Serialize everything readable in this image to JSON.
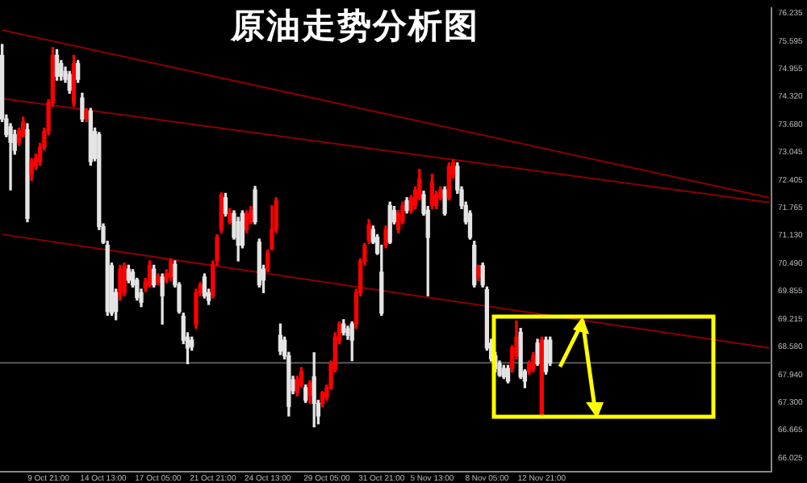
{
  "chart_data": {
    "type": "candlestick",
    "title": "原油走势分析图",
    "categories": [
      null,
      null,
      null,
      null,
      null,
      null,
      null,
      null,
      null,
      null,
      null,
      "9 Oct 21:00",
      null,
      null,
      null,
      null,
      null,
      null,
      null,
      null,
      null,
      null,
      null,
      null,
      "14 Oct 13:00",
      null,
      null,
      null,
      null,
      null,
      null,
      null,
      null,
      null,
      null,
      null,
      null,
      "17 Oct 05:00",
      null,
      null,
      null,
      null,
      null,
      null,
      null,
      null,
      null,
      null,
      null,
      null,
      "21 Oct 21:00",
      null,
      null,
      null,
      null,
      null,
      null,
      null,
      null,
      null,
      null,
      null,
      null,
      "24 Oct 13:00",
      null,
      null,
      null,
      null,
      null,
      null,
      null,
      null,
      null,
      null,
      null,
      null,
      null,
      "29 Oct 05:00",
      null,
      null,
      null,
      null,
      null,
      null,
      null,
      null,
      null,
      null,
      null,
      null,
      "31 Oct 21:00",
      null,
      null,
      null,
      null,
      null,
      null,
      null,
      null,
      null,
      null,
      null,
      "5 Nov 13:00",
      null,
      null,
      null,
      null,
      null,
      null,
      null,
      null,
      null,
      null,
      null,
      null,
      "8 Nov 05:00",
      null,
      null,
      null,
      null,
      null,
      null,
      null,
      null,
      null,
      null,
      null,
      null,
      "12 Nov 21:00",
      null,
      null,
      null,
      null,
      null,
      null,
      null,
      null,
      null,
      null,
      null,
      null,
      null,
      null,
      null,
      null,
      null,
      null,
      null,
      null,
      null,
      null,
      null,
      null,
      null,
      null,
      null,
      null,
      null,
      null,
      null,
      null,
      null,
      null,
      null,
      null,
      null,
      null,
      null,
      null,
      null,
      null,
      null,
      null,
      null,
      null,
      null,
      null,
      null,
      null,
      null,
      null,
      null,
      null
    ],
    "ylim": [
      65.71,
      76.355
    ],
    "yticks": [
      76.235,
      75.595,
      74.955,
      {
        "value": 74.32,
        "label": "74.320"
      },
      {
        "value": 73.68,
        "label": "73.680"
      },
      73.045,
      72.405,
      71.765,
      {
        "value": 71.13,
        "label": "71.130"
      },
      {
        "value": 70.49,
        "label": "70.490"
      },
      69.855,
      69.215,
      {
        "value": 68.58,
        "label": "68.580"
      },
      {
        "value": 67.94,
        "label": "67.940"
      },
      {
        "value": 67.3,
        "label": "67.300"
      },
      66.665,
      66.025
    ],
    "grid": false,
    "legend": false,
    "marker": "none",
    "ref_lines": [
      {
        "axis": "y",
        "value": 68.21,
        "color": "#5a5a5a"
      }
    ],
    "series": [
      {
        "colors": [
          "#e4e4e4",
          "#e4e4e4",
          "#e4e4e4",
          "#e4e4e4",
          "#ff0000",
          "#ff0000",
          "#e4e4e4",
          "#ff0000",
          "#ff0000",
          "#ff0000",
          "#ff0000",
          "#ff0000",
          "#ff0000",
          "#e4e4e4",
          "#e4e4e4",
          "#e4e4e4",
          "#e4e4e4",
          "#ff0000",
          "#e4e4e4",
          "#e4e4e4",
          "#ff0000",
          "#e4e4e4",
          "#e4e4e4",
          "#e4e4e4",
          "#e4e4e4",
          "#e4e4e4",
          "#e4e4e4",
          "#e4e4e4",
          "#ff0000",
          "#ff0000",
          "#e4e4e4",
          "#e4e4e4",
          "#e4e4e4",
          "#e4e4e4",
          "#ff0000",
          "#ff0000",
          "#e4e4e4",
          "#ff0000",
          "#e4e4e4",
          "#ff0000",
          "#ff0000",
          "#e4e4e4",
          "#e4e4e4",
          "#e4e4e4",
          "#e4e4e4",
          "#e4e4e4",
          "#ff0000",
          "#ff0000",
          "#e4e4e4",
          "#e4e4e4",
          "#ff0000",
          "#ff0000",
          "#ff0000",
          "#e4e4e4",
          "#ff0000",
          "#e4e4e4",
          "#e4e4e4",
          "#e4e4e4",
          "#ff0000",
          "#ff0000",
          "#e4e4e4",
          "#e4e4e4",
          "#e4e4e4",
          "#ff0000",
          "#ff0000",
          "#ff0000",
          "#e4e4e4",
          "#e4e4e4",
          "#e4e4e4",
          "#e4e4e4",
          "#ff0000",
          "#ff0000",
          "#e4e4e4",
          "#ff0000",
          "#e4e4e4",
          "#e4e4e4",
          "#ff0000",
          "#ff0000",
          "#ff0000",
          "#ff0000",
          "#ff0000",
          "#e4e4e4",
          "#e4e4e4",
          "#e4e4e4",
          "#ff0000",
          "#ff0000",
          "#ff0000",
          "#ff0000",
          "#e4e4e4",
          "#e4e4e4",
          "#e4e4e4",
          "#ff0000",
          "#e4e4e4",
          "#e4e4e4",
          "#ff0000",
          "#ff0000",
          "#e4e4e4",
          "#ff0000",
          "#ff0000",
          "#ff0000",
          "#e4e4e4",
          "#e4e4e4",
          "#ff0000",
          "#ff0000",
          "#ff0000",
          "#e4e4e4",
          "#ff0000",
          "#ff0000",
          "#e4e4e4",
          "#e4e4e4",
          "#e4e4e4",
          "#e4e4e4",
          "#e4e4e4",
          "#ff0000",
          "#e4e4e4",
          "#e4e4e4",
          "#e4e4e4",
          "#e4e4e4",
          "#e4e4e4",
          "#e4e4e4",
          "#e4e4e4",
          "#ff0000",
          "#ff0000",
          "#e4e4e4",
          "#e4e4e4",
          "#ff0000",
          "#ff0000",
          "#e4e4e4",
          "#ff0000",
          "#e4e4e4",
          "#e4e4e4",
          null,
          null,
          null,
          null,
          null,
          null,
          null,
          null,
          null,
          null,
          null,
          null,
          null,
          null,
          null,
          null,
          null,
          null,
          null,
          null,
          null,
          null,
          null,
          null,
          null,
          null,
          null,
          null,
          null,
          null,
          null,
          null,
          null,
          null,
          null,
          null,
          null,
          null,
          null,
          null,
          null,
          null,
          null,
          null,
          null,
          null,
          null,
          null,
          null,
          null,
          null,
          null
        ],
        "ohlc": [
          [
            75.27,
            75.52,
            73.75,
            73.81
          ],
          [
            73.81,
            73.9,
            73.4,
            73.45
          ],
          [
            73.63,
            73.7,
            72.18,
            73.27
          ],
          [
            73.45,
            73.55,
            73.0,
            73.09
          ],
          [
            73.27,
            73.6,
            73.2,
            73.54
          ],
          [
            73.45,
            73.85,
            73.4,
            73.74
          ],
          [
            73.56,
            73.7,
            71.45,
            71.53
          ],
          [
            72.54,
            72.9,
            72.4,
            72.83
          ],
          [
            72.72,
            73.0,
            72.65,
            72.9
          ],
          [
            72.83,
            73.25,
            72.75,
            73.16
          ],
          [
            73.16,
            73.6,
            73.1,
            73.52
          ],
          [
            73.52,
            74.25,
            73.45,
            74.18
          ],
          [
            74.18,
            75.45,
            74.1,
            75.27
          ],
          [
            75.27,
            75.4,
            74.7,
            74.79
          ],
          [
            75.08,
            75.15,
            74.7,
            74.79
          ],
          [
            74.9,
            75.0,
            74.65,
            74.72
          ],
          [
            74.83,
            74.9,
            74.4,
            74.47
          ],
          [
            74.18,
            75.27,
            74.1,
            75.08
          ],
          [
            75.08,
            75.15,
            74.65,
            74.72
          ],
          [
            74.29,
            74.4,
            73.75,
            73.81
          ],
          [
            73.81,
            74.05,
            73.75,
            73.99
          ],
          [
            73.99,
            74.05,
            72.75,
            72.83
          ],
          [
            73.52,
            73.6,
            72.85,
            72.9
          ],
          [
            73.45,
            73.5,
            71.27,
            71.34
          ],
          [
            71.34,
            71.4,
            70.95,
            70.98
          ],
          [
            70.91,
            71.0,
            69.3,
            69.39
          ],
          [
            70.44,
            70.5,
            69.3,
            69.35
          ],
          [
            69.82,
            69.9,
            69.2,
            69.39
          ],
          [
            69.75,
            70.45,
            69.65,
            70.36
          ],
          [
            69.82,
            70.5,
            69.75,
            70.44
          ],
          [
            70.36,
            70.45,
            70.05,
            70.11
          ],
          [
            70.29,
            70.35,
            69.95,
            70.0
          ],
          [
            70.11,
            70.15,
            69.65,
            69.71
          ],
          [
            69.82,
            69.9,
            69.5,
            69.6
          ],
          [
            69.93,
            70.15,
            69.85,
            70.07
          ],
          [
            70.0,
            70.55,
            69.95,
            70.44
          ],
          [
            70.36,
            70.45,
            69.95,
            70.0
          ],
          [
            70.07,
            70.25,
            70.0,
            70.18
          ],
          [
            70.18,
            70.25,
            69.1,
            69.75
          ],
          [
            70.11,
            70.35,
            70.05,
            70.26
          ],
          [
            70.18,
            70.6,
            70.1,
            70.55
          ],
          [
            70.47,
            70.55,
            69.95,
            70.0
          ],
          [
            70.0,
            70.05,
            69.35,
            69.39
          ],
          [
            69.28,
            69.35,
            68.65,
            68.73
          ],
          [
            68.8,
            68.9,
            68.19,
            68.55
          ],
          [
            68.73,
            68.8,
            68.5,
            68.58
          ],
          [
            69.1,
            69.9,
            69.0,
            69.82
          ],
          [
            69.82,
            70.05,
            69.75,
            70.0
          ],
          [
            70.18,
            70.25,
            69.7,
            69.75
          ],
          [
            69.82,
            69.9,
            69.55,
            69.64
          ],
          [
            69.75,
            70.55,
            69.7,
            70.47
          ],
          [
            70.55,
            71.15,
            70.45,
            71.09
          ],
          [
            71.27,
            72.11,
            71.2,
            72.07
          ],
          [
            72.0,
            72.1,
            71.58,
            71.64
          ],
          [
            71.45,
            71.75,
            71.4,
            71.64
          ],
          [
            71.64,
            71.7,
            71.05,
            71.09
          ],
          [
            71.45,
            71.55,
            70.55,
            70.91
          ],
          [
            71.64,
            71.7,
            70.85,
            70.91
          ],
          [
            71.27,
            71.7,
            71.2,
            71.64
          ],
          [
            71.45,
            71.8,
            71.4,
            71.71
          ],
          [
            72.18,
            72.26,
            71.4,
            71.45
          ],
          [
            70.98,
            71.05,
            69.95,
            70.0
          ],
          [
            70.36,
            70.45,
            69.82,
            70.11
          ],
          [
            70.36,
            70.8,
            70.3,
            70.73
          ],
          [
            70.84,
            71.82,
            70.8,
            71.27
          ],
          [
            71.27,
            72.0,
            71.2,
            71.93
          ],
          [
            68.84,
            69.1,
            68.4,
            68.48
          ],
          [
            68.73,
            68.8,
            68.3,
            68.37
          ],
          [
            68.37,
            68.45,
            66.99,
            67.21
          ],
          [
            67.82,
            67.9,
            67.5,
            67.57
          ],
          [
            67.53,
            67.9,
            67.45,
            67.82
          ],
          [
            67.71,
            68.1,
            67.65,
            68.01
          ],
          [
            67.64,
            67.7,
            67.3,
            67.35
          ],
          [
            67.46,
            67.8,
            67.28,
            67.75
          ],
          [
            67.89,
            68.44,
            66.74,
            67.28
          ],
          [
            67.28,
            67.35,
            66.81,
            66.99
          ],
          [
            67.28,
            67.55,
            67.2,
            67.53
          ],
          [
            67.42,
            67.7,
            67.35,
            67.64
          ],
          [
            67.64,
            68.25,
            67.6,
            68.19
          ],
          [
            68.08,
            68.9,
            68.0,
            68.8
          ],
          [
            68.73,
            69.15,
            68.65,
            69.1
          ],
          [
            69.1,
            69.2,
            68.85,
            68.91
          ],
          [
            68.99,
            69.05,
            68.75,
            68.84
          ],
          [
            69.1,
            69.15,
            68.26,
            68.73
          ],
          [
            69.1,
            69.9,
            69.0,
            69.82
          ],
          [
            69.82,
            70.6,
            69.75,
            70.55
          ],
          [
            70.55,
            70.95,
            70.45,
            70.91
          ],
          [
            71.02,
            71.5,
            70.95,
            71.38
          ],
          [
            71.27,
            71.35,
            70.95,
            70.98
          ],
          [
            71.09,
            71.15,
            70.7,
            70.73
          ],
          [
            70.29,
            70.91,
            69.3,
            69.35
          ],
          [
            70.91,
            71.35,
            70.85,
            71.27
          ],
          [
            71.82,
            71.9,
            70.95,
            70.98
          ],
          [
            71.71,
            71.8,
            71.4,
            71.45
          ],
          [
            71.27,
            71.7,
            71.2,
            71.64
          ],
          [
            71.45,
            71.9,
            71.4,
            71.82
          ],
          [
            71.93,
            72.0,
            71.65,
            71.71
          ],
          [
            71.71,
            72.05,
            71.65,
            72.0
          ],
          [
            71.82,
            72.25,
            71.75,
            72.18
          ],
          [
            72.0,
            72.65,
            71.95,
            72.43
          ],
          [
            72.07,
            72.15,
            71.6,
            71.64
          ],
          [
            71.71,
            71.8,
            69.75,
            71.09
          ],
          [
            71.82,
            72.54,
            71.75,
            72.36
          ],
          [
            71.82,
            72.15,
            71.75,
            72.07
          ],
          [
            72.0,
            72.25,
            71.95,
            72.18
          ],
          [
            72.18,
            72.25,
            71.6,
            71.64
          ],
          [
            72.0,
            72.8,
            71.95,
            72.72
          ],
          [
            72.54,
            72.87,
            72.45,
            72.8
          ],
          [
            72.72,
            72.8,
            72.1,
            72.18
          ],
          [
            72.18,
            72.25,
            71.75,
            71.82
          ],
          [
            71.82,
            71.9,
            71.4,
            71.45
          ],
          [
            71.64,
            71.7,
            71.05,
            71.09
          ],
          [
            70.91,
            71.0,
            69.95,
            70.0
          ],
          [
            70.18,
            70.45,
            70.1,
            70.44
          ],
          [
            70.44,
            70.5,
            69.95,
            70.0
          ],
          [
            69.89,
            69.95,
            68.5,
            68.55
          ],
          [
            68.66,
            68.75,
            68.25,
            68.3
          ],
          [
            68.37,
            68.45,
            68.0,
            68.08
          ],
          [
            68.19,
            68.25,
            67.9,
            67.93
          ],
          [
            68.08,
            68.15,
            67.85,
            67.89
          ],
          [
            68.08,
            68.15,
            67.75,
            67.79
          ],
          [
            68.08,
            68.6,
            68.0,
            68.55
          ],
          [
            68.37,
            69.17,
            68.3,
            68.8
          ],
          [
            68.91,
            69.0,
            67.85,
            67.89
          ],
          [
            68.01,
            68.05,
            67.64,
            67.79
          ],
          [
            68.01,
            68.25,
            67.95,
            68.19
          ],
          [
            68.08,
            68.45,
            68.0,
            68.37
          ],
          [
            68.66,
            68.75,
            68.15,
            68.19
          ],
          [
            66.99,
            68.8,
            66.95,
            68.73
          ],
          [
            68.73,
            68.8,
            67.95,
            68.01
          ],
          [
            68.73,
            68.8,
            68.15,
            68.21
          ],
          null,
          null,
          null,
          null,
          null,
          null,
          null,
          null,
          null,
          null,
          null,
          null,
          null,
          null,
          null,
          null,
          null,
          null,
          null,
          null,
          null,
          null,
          null,
          null,
          null,
          null,
          null,
          null,
          null,
          null,
          null,
          null,
          null,
          null,
          null,
          null,
          null,
          null,
          null,
          null,
          null,
          null,
          null,
          null,
          null,
          null,
          null,
          null,
          null,
          null,
          null,
          null
        ]
      },
      {
        "type": "line",
        "color": "#8b0000",
        "values": [
          75.85,
          null,
          null,
          null,
          null,
          null,
          null,
          null,
          null,
          null,
          null,
          null,
          null,
          null,
          null,
          null,
          null,
          null,
          null,
          null,
          null,
          null,
          null,
          null,
          null,
          null,
          null,
          null,
          null,
          null,
          null,
          null,
          null,
          null,
          null,
          null,
          null,
          null,
          null,
          null,
          null,
          null,
          null,
          null,
          null,
          null,
          null,
          null,
          null,
          null,
          null,
          null,
          null,
          null,
          null,
          null,
          null,
          null,
          null,
          null,
          null,
          null,
          null,
          null,
          null,
          null,
          null,
          null,
          null,
          null,
          null,
          null,
          null,
          null,
          null,
          null,
          null,
          null,
          null,
          null,
          null,
          null,
          null,
          null,
          null,
          null,
          null,
          null,
          null,
          null,
          null,
          null,
          null,
          null,
          null,
          null,
          null,
          null,
          null,
          null,
          null,
          null,
          null,
          null,
          null,
          null,
          null,
          null,
          null,
          null,
          null,
          null,
          null,
          null,
          null,
          null,
          null,
          null,
          null,
          null,
          null,
          null,
          null,
          null,
          null,
          null,
          null,
          null,
          null,
          null,
          null,
          null,
          null,
          null,
          null,
          null,
          null,
          null,
          null,
          null,
          null,
          null,
          null,
          null,
          null,
          null,
          null,
          null,
          null,
          null,
          null,
          null,
          null,
          null,
          null,
          null,
          null,
          null,
          null,
          null,
          null,
          null,
          null,
          null,
          null,
          null,
          null,
          null,
          null,
          null,
          null,
          null,
          null,
          null,
          null,
          null,
          null,
          null,
          null,
          null,
          null,
          null,
          72.0
        ]
      },
      {
        "type": "line",
        "color": "#8b0000",
        "values": [
          74.28,
          null,
          null,
          null,
          null,
          null,
          null,
          null,
          null,
          null,
          null,
          null,
          null,
          null,
          null,
          null,
          null,
          null,
          null,
          null,
          null,
          null,
          null,
          null,
          null,
          null,
          null,
          null,
          null,
          null,
          null,
          null,
          null,
          null,
          null,
          null,
          null,
          null,
          null,
          null,
          null,
          null,
          null,
          null,
          null,
          null,
          null,
          null,
          null,
          null,
          null,
          null,
          null,
          null,
          null,
          null,
          null,
          null,
          null,
          null,
          null,
          null,
          null,
          null,
          null,
          null,
          null,
          null,
          null,
          null,
          null,
          null,
          null,
          null,
          null,
          null,
          null,
          null,
          null,
          null,
          null,
          null,
          null,
          null,
          null,
          null,
          null,
          null,
          null,
          null,
          null,
          null,
          null,
          null,
          null,
          null,
          null,
          null,
          null,
          null,
          null,
          null,
          null,
          null,
          null,
          null,
          null,
          null,
          null,
          null,
          null,
          null,
          null,
          null,
          null,
          null,
          null,
          null,
          null,
          null,
          null,
          null,
          null,
          null,
          null,
          null,
          null,
          null,
          null,
          null,
          null,
          null,
          null,
          null,
          null,
          null,
          null,
          null,
          null,
          null,
          null,
          null,
          null,
          null,
          null,
          null,
          null,
          null,
          null,
          null,
          null,
          null,
          null,
          null,
          null,
          null,
          null,
          null,
          null,
          null,
          null,
          null,
          null,
          null,
          null,
          null,
          null,
          null,
          null,
          null,
          null,
          null,
          null,
          null,
          null,
          null,
          null,
          null,
          null,
          null,
          null,
          null,
          71.89
        ]
      },
      {
        "type": "line",
        "color": "#8b0000",
        "values": [
          71.16,
          null,
          null,
          null,
          null,
          null,
          null,
          null,
          null,
          null,
          null,
          null,
          null,
          null,
          null,
          null,
          null,
          null,
          null,
          null,
          null,
          null,
          null,
          null,
          null,
          null,
          null,
          null,
          null,
          null,
          null,
          null,
          null,
          null,
          null,
          null,
          null,
          null,
          null,
          null,
          null,
          null,
          null,
          null,
          null,
          null,
          null,
          null,
          null,
          null,
          null,
          null,
          null,
          null,
          null,
          null,
          null,
          null,
          null,
          null,
          null,
          null,
          null,
          null,
          null,
          null,
          null,
          null,
          null,
          null,
          null,
          null,
          null,
          null,
          null,
          null,
          null,
          null,
          null,
          null,
          null,
          null,
          null,
          null,
          null,
          null,
          null,
          null,
          null,
          null,
          null,
          null,
          null,
          null,
          null,
          null,
          null,
          null,
          null,
          null,
          null,
          null,
          null,
          null,
          null,
          null,
          null,
          null,
          null,
          null,
          null,
          null,
          null,
          null,
          null,
          null,
          null,
          null,
          null,
          null,
          null,
          null,
          null,
          null,
          null,
          null,
          null,
          null,
          null,
          null,
          null,
          null,
          null,
          null,
          null,
          null,
          null,
          null,
          null,
          null,
          null,
          null,
          null,
          null,
          null,
          null,
          null,
          null,
          null,
          null,
          null,
          null,
          null,
          null,
          null,
          null,
          null,
          null,
          null,
          null,
          null,
          null,
          null,
          null,
          null,
          null,
          null,
          null,
          null,
          null,
          null,
          null,
          null,
          null,
          null,
          null,
          null,
          null,
          null,
          null,
          null,
          null,
          68.55
        ]
      }
    ]
  }
}
